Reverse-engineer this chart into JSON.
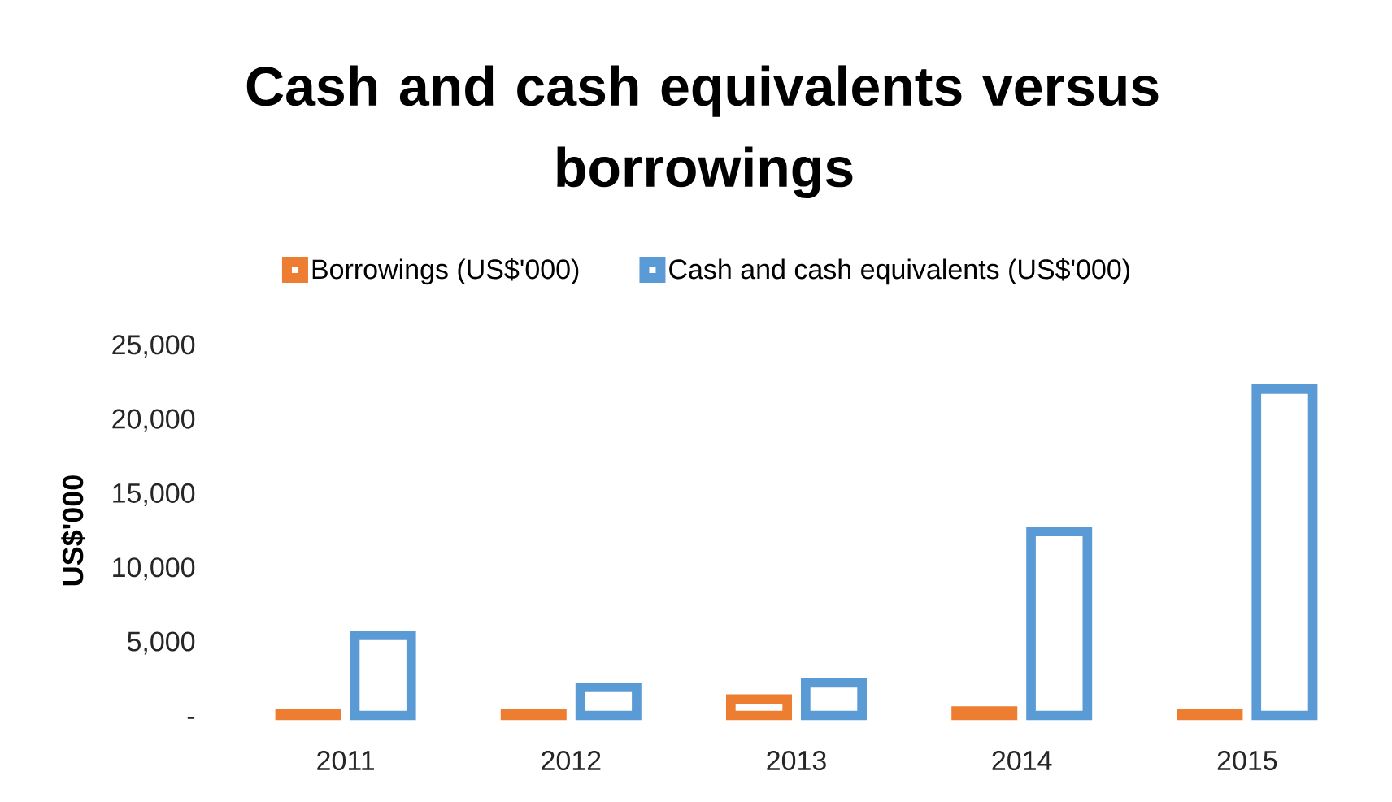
{
  "chart_data": {
    "type": "bar",
    "title": "Cash and cash equivalents versus borrowings",
    "ylabel": "US$'000",
    "categories": [
      "2011",
      "2012",
      "2013",
      "2014",
      "2015"
    ],
    "series": [
      {
        "name": "Borrowings (US$'000)",
        "color": "#ed7d31",
        "values": [
          150,
          150,
          1100,
          300,
          150
        ]
      },
      {
        "name": "Cash and cash equivalents (US$'000)",
        "color": "#5b9bd5",
        "values": [
          5400,
          1900,
          2200,
          12400,
          22000
        ]
      }
    ],
    "ylim": [
      0,
      25000
    ],
    "yticks": [
      {
        "value": 0,
        "label": "-"
      },
      {
        "value": 5000,
        "label": "5,000"
      },
      {
        "value": 10000,
        "label": "10,000"
      },
      {
        "value": 15000,
        "label": "15,000"
      },
      {
        "value": 20000,
        "label": "20,000"
      },
      {
        "value": 25000,
        "label": "25,000"
      }
    ],
    "legend": "top"
  }
}
